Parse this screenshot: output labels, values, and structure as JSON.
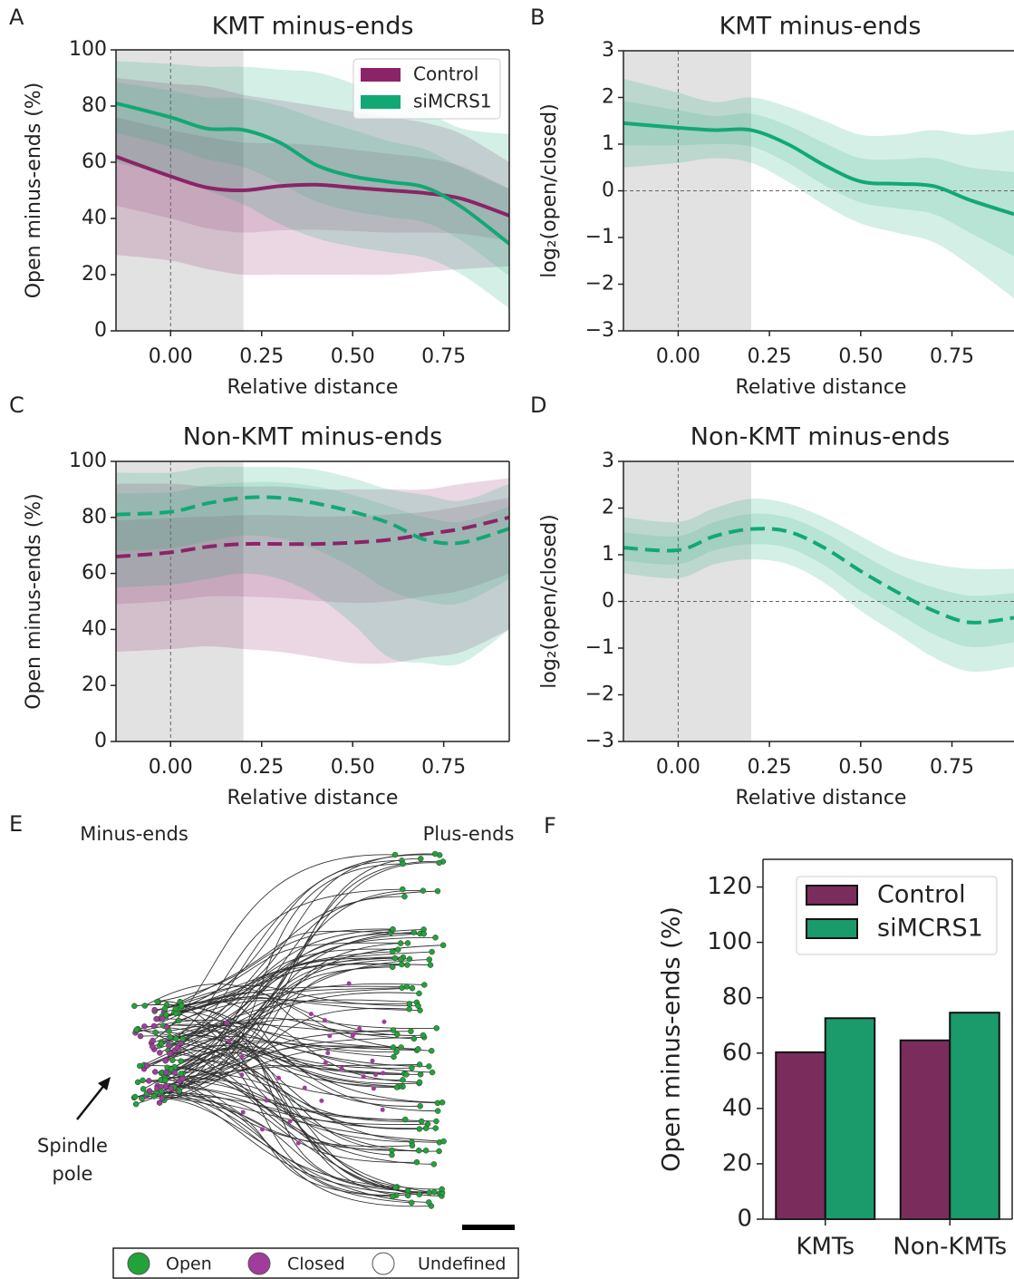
{
  "panels": [
    "A",
    "B",
    "C",
    "D",
    "E",
    "F"
  ],
  "chart_data": [
    {
      "type": "line",
      "title": "KMT minus-ends",
      "xlabel": "Relative distance",
      "ylabel": "Open minus-ends (%)",
      "x": [
        -0.15,
        0,
        0.1,
        0.2,
        0.3,
        0.4,
        0.5,
        0.6,
        0.7,
        0.8,
        0.93
      ],
      "xlim": [
        -0.15,
        0.93
      ],
      "xticks": [
        {
          "value": 0,
          "label": "0.00"
        },
        {
          "value": 0.25,
          "label": "0.25"
        },
        {
          "value": 0.5,
          "label": "0.50"
        },
        {
          "value": 0.75,
          "label": "0.75"
        }
      ],
      "ylim": [
        0,
        100
      ],
      "yticks": [
        0,
        20,
        40,
        60,
        80,
        100
      ],
      "shade": [
        -0.15,
        0.2
      ],
      "vline": 0,
      "line_style": "solid",
      "legend": "upper right",
      "series": [
        {
          "name": "Control",
          "color": "#8b2466",
          "values": [
            62,
            55,
            51,
            50,
            51.5,
            52,
            51,
            50,
            49,
            47,
            41
          ],
          "lower": [
            27,
            25,
            22,
            20,
            20,
            20,
            20,
            20,
            21,
            22,
            23
          ],
          "upper": [
            90,
            88,
            87,
            84,
            82,
            80,
            78,
            76,
            74,
            70,
            60
          ]
        },
        {
          "name": "siMCRS1",
          "color": "#12a874",
          "values": [
            81,
            76,
            72,
            71.5,
            67,
            59,
            55,
            53,
            51,
            44,
            31
          ],
          "lower": [
            60,
            55,
            50,
            45,
            38,
            33,
            30,
            28,
            26,
            20,
            8
          ],
          "upper": [
            96,
            95,
            94,
            94,
            93,
            92,
            88,
            82,
            78,
            72,
            70
          ]
        }
      ]
    },
    {
      "type": "line",
      "title": "KMT minus-ends",
      "xlabel": "Relative distance",
      "ylabel": "log₂(open/closed)",
      "x": [
        -0.15,
        0,
        0.1,
        0.2,
        0.3,
        0.4,
        0.5,
        0.6,
        0.7,
        0.8,
        0.92
      ],
      "xlim": [
        -0.15,
        0.92
      ],
      "xticks": [
        {
          "value": 0,
          "label": "0.00"
        },
        {
          "value": 0.25,
          "label": "0.25"
        },
        {
          "value": 0.5,
          "label": "0.50"
        },
        {
          "value": 0.75,
          "label": "0.75"
        }
      ],
      "ylim": [
        -3,
        3
      ],
      "yticks": [
        {
          "value": -3,
          "label": "−3"
        },
        {
          "value": -2,
          "label": "−2"
        },
        {
          "value": -1,
          "label": "−1"
        },
        0,
        1,
        2,
        3
      ],
      "shade": [
        -0.15,
        0.2
      ],
      "vline": 0,
      "hline": 0,
      "line_style": "solid",
      "series": [
        {
          "color": "#12a874",
          "values": [
            1.45,
            1.35,
            1.3,
            1.3,
            1.0,
            0.55,
            0.2,
            0.15,
            0.1,
            -0.2,
            -0.5
          ],
          "lower": [
            0.5,
            0.6,
            0.7,
            0.6,
            0.2,
            -0.3,
            -0.7,
            -0.9,
            -1.1,
            -1.6,
            -2.3
          ],
          "upper": [
            2.4,
            2.1,
            1.9,
            2.0,
            1.8,
            1.5,
            1.2,
            1.2,
            1.3,
            1.2,
            1.3
          ]
        }
      ]
    },
    {
      "type": "line",
      "title": "Non-KMT minus-ends",
      "xlabel": "Relative distance",
      "ylabel": "Open minus-ends (%)",
      "x": [
        -0.15,
        0,
        0.1,
        0.2,
        0.3,
        0.4,
        0.5,
        0.6,
        0.7,
        0.8,
        0.93
      ],
      "xlim": [
        -0.15,
        0.93
      ],
      "xticks": [
        {
          "value": 0,
          "label": "0.00"
        },
        {
          "value": 0.25,
          "label": "0.25"
        },
        {
          "value": 0.5,
          "label": "0.50"
        },
        {
          "value": 0.75,
          "label": "0.75"
        }
      ],
      "ylim": [
        0,
        100
      ],
      "yticks": [
        0,
        20,
        40,
        60,
        80,
        100
      ],
      "shade": [
        -0.15,
        0.2
      ],
      "vline": 0,
      "line_style": "dashed",
      "series": [
        {
          "color": "#8b2466",
          "values": [
            66,
            67.5,
            69.5,
            70.5,
            70.5,
            70.5,
            71,
            72,
            74,
            76,
            80
          ],
          "lower": [
            32,
            33,
            34,
            33,
            32,
            30,
            28,
            28,
            30,
            32,
            40
          ],
          "upper": [
            92,
            92,
            91,
            91,
            91,
            90,
            90,
            90,
            90,
            92,
            94
          ]
        },
        {
          "color": "#12a874",
          "values": [
            81,
            82,
            85,
            87,
            87,
            85,
            82,
            78,
            72,
            71,
            76
          ],
          "lower": [
            55,
            56,
            58,
            60,
            58,
            52,
            42,
            30,
            28,
            28,
            40
          ],
          "upper": [
            96,
            96,
            98,
            98,
            98,
            97,
            94,
            90,
            88,
            86,
            92
          ]
        }
      ]
    },
    {
      "type": "line",
      "title": "Non-KMT minus-ends",
      "xlabel": "Relative distance",
      "ylabel": "log₂(open/closed)",
      "x": [
        -0.15,
        0,
        0.1,
        0.2,
        0.3,
        0.4,
        0.5,
        0.6,
        0.7,
        0.8,
        0.92
      ],
      "xlim": [
        -0.15,
        0.92
      ],
      "xticks": [
        {
          "value": 0,
          "label": "0.00"
        },
        {
          "value": 0.25,
          "label": "0.25"
        },
        {
          "value": 0.5,
          "label": "0.50"
        },
        {
          "value": 0.75,
          "label": "0.75"
        }
      ],
      "ylim": [
        -3,
        3
      ],
      "yticks": [
        {
          "value": -3,
          "label": "−3"
        },
        {
          "value": -2,
          "label": "−2"
        },
        {
          "value": -1,
          "label": "−1"
        },
        0,
        1,
        2,
        3
      ],
      "shade": [
        -0.15,
        0.2
      ],
      "vline": 0,
      "hline": 0,
      "line_style": "dashed",
      "series": [
        {
          "color": "#12a874",
          "values": [
            1.15,
            1.1,
            1.4,
            1.55,
            1.5,
            1.15,
            0.65,
            0.2,
            -0.2,
            -0.45,
            -0.35
          ],
          "lower": [
            0.6,
            0.5,
            0.8,
            0.9,
            0.8,
            0.4,
            -0.2,
            -0.7,
            -1.2,
            -1.5,
            -1.4
          ],
          "upper": [
            1.8,
            1.7,
            2.0,
            2.2,
            2.1,
            1.8,
            1.4,
            1.0,
            0.8,
            0.7,
            0.7
          ]
        }
      ]
    },
    {
      "type": "bar",
      "ylabel": "Open minus-ends (%)",
      "categories": [
        "KMTs",
        "Non-KMTs"
      ],
      "ylim": [
        0,
        130
      ],
      "yticks": [
        0,
        20,
        40,
        60,
        80,
        100,
        120
      ],
      "legend": "upper left",
      "series": [
        {
          "name": "Control",
          "color": "#7a2d5c",
          "values": [
            60.3,
            64.6
          ]
        },
        {
          "name": "siMCRS1",
          "color": "#1b9a6c",
          "values": [
            72.6,
            74.6
          ]
        }
      ]
    }
  ],
  "panel_e": {
    "minus_label": "Minus-ends",
    "plus_label": "Plus-ends",
    "pole_label": [
      "Spindle",
      "pole"
    ],
    "legend": [
      "Open",
      "Closed",
      "Undefined"
    ]
  }
}
